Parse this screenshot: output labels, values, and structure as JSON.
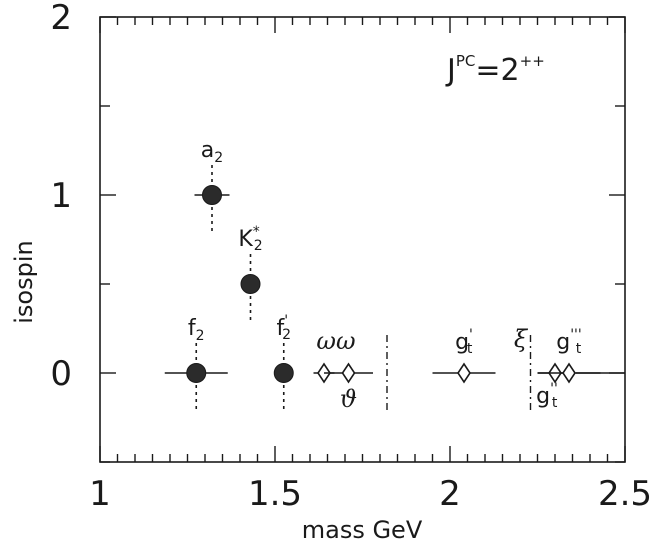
{
  "chart_data": {
    "type": "scatter",
    "title": "",
    "xlabel": "mass GeV",
    "ylabel": "isospin",
    "xlim": [
      1.0,
      2.5
    ],
    "ylim": [
      -0.5,
      2.0
    ],
    "x_ticks": [
      1.0,
      1.5,
      2.0,
      2.5
    ],
    "x_tick_labels": [
      "1",
      "1.5",
      "2",
      "2.5"
    ],
    "y_ticks": [
      0,
      1,
      2
    ],
    "y_tick_labels": [
      "0",
      "1",
      "2"
    ],
    "annotation": {
      "base": "J",
      "sup": "PC",
      "rest": "=2",
      "rest_sup": "++"
    },
    "grid": false,
    "colors": {
      "ink": "#1a1a1a",
      "marker_fill": "#2b2b2b"
    },
    "series": [
      {
        "marker": "filled-circle",
        "points": [
          {
            "label": "a",
            "sub": "2",
            "x": 1.32,
            "y": 1.0,
            "xerr": 0.05
          },
          {
            "label": "K",
            "sup": "*",
            "sub": "2",
            "x": 1.43,
            "y": 0.5,
            "xerr": 0.025
          },
          {
            "label": "f",
            "sub": "2",
            "x": 1.275,
            "y": 0.0,
            "xerr": 0.09
          },
          {
            "label": "f",
            "sub": "2",
            "sup": "'",
            "x": 1.525,
            "y": 0.0,
            "xerr": 0.02
          }
        ]
      },
      {
        "marker": "open-diamond",
        "points": [
          {
            "label": "ωω",
            "x": 1.64,
            "y": 0.0,
            "xerr": 0.03
          },
          {
            "label": "ϑ",
            "x": 1.71,
            "y": 0.0,
            "xerr": 0.07
          },
          {
            "label": "g",
            "sub": "t",
            "sup": "'",
            "x": 2.04,
            "y": 0.0,
            "xerr": 0.09
          },
          {
            "label": "g",
            "sub": "t",
            "sup": "''",
            "x": 2.3,
            "y": 0.0,
            "xerr": 0.05
          },
          {
            "label": "g",
            "sub": "t",
            "sup": "'''",
            "x": 2.34,
            "y": 0.0,
            "xerr": 0.09
          }
        ]
      },
      {
        "marker": "dash-dot-line",
        "points": [
          {
            "label": "",
            "x": 1.82,
            "y": 0.0
          },
          {
            "label": "ξ",
            "x": 2.23,
            "y": 0.0
          }
        ]
      }
    ]
  }
}
